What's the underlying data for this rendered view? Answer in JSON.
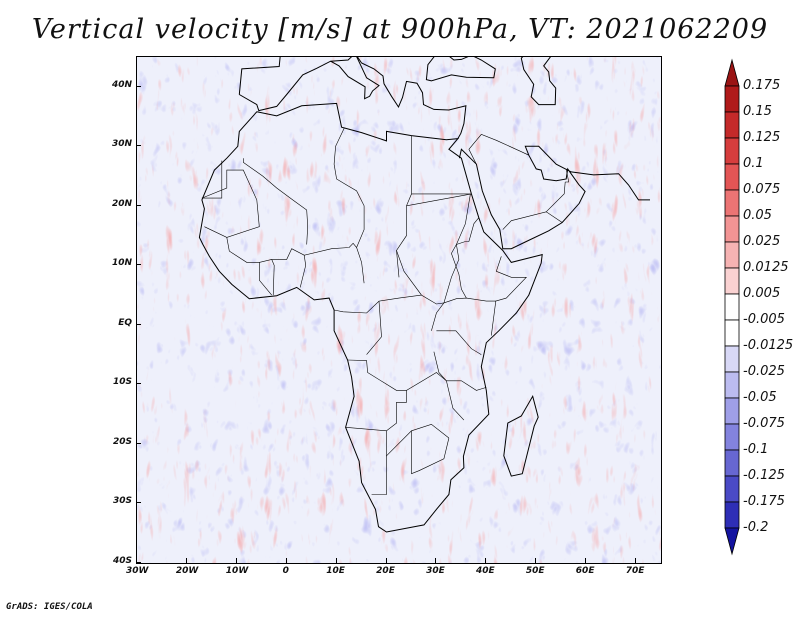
{
  "title": "Vertical velocity [m/s] at 900hPa, VT: 2021062209",
  "credit": "GrADS: IGES/COLA",
  "map": {
    "lon_range": [
      -30,
      75
    ],
    "lat_range": [
      -40,
      45
    ],
    "lat_ticks": [
      "40N",
      "30N",
      "20N",
      "10N",
      "EQ",
      "10S",
      "20S",
      "30S",
      "40S"
    ],
    "lon_ticks": [
      "30W",
      "20W",
      "10W",
      "0",
      "10E",
      "20E",
      "30E",
      "40E",
      "50E",
      "60E",
      "70E"
    ],
    "field_pattern": "red/blue mottled vertical velocity field over Africa, Arabian Peninsula and surrounding oceans"
  },
  "colorbar": {
    "labels": [
      "0.175",
      "0.15",
      "0.125",
      "0.1",
      "0.075",
      "0.05",
      "0.025",
      "0.0125",
      "0.005",
      "-0.005",
      "-0.0125",
      "-0.025",
      "-0.05",
      "-0.075",
      "-0.1",
      "-0.125",
      "-0.175",
      "-0.2"
    ],
    "colors": [
      "#b01a1a",
      "#c42a2a",
      "#d63d3d",
      "#e35555",
      "#ec7474",
      "#f29494",
      "#f6b3b3",
      "#fad2d2",
      "#ffffff",
      "#ffffff",
      "#d8d8f6",
      "#bcbcf0",
      "#9f9fe8",
      "#8383de",
      "#6767d2",
      "#4a4ac6",
      "#2e2eb6",
      "#1a1aa0"
    ],
    "top_arrow_color": "#9a1414",
    "bottom_arrow_color": "#1414a0"
  }
}
